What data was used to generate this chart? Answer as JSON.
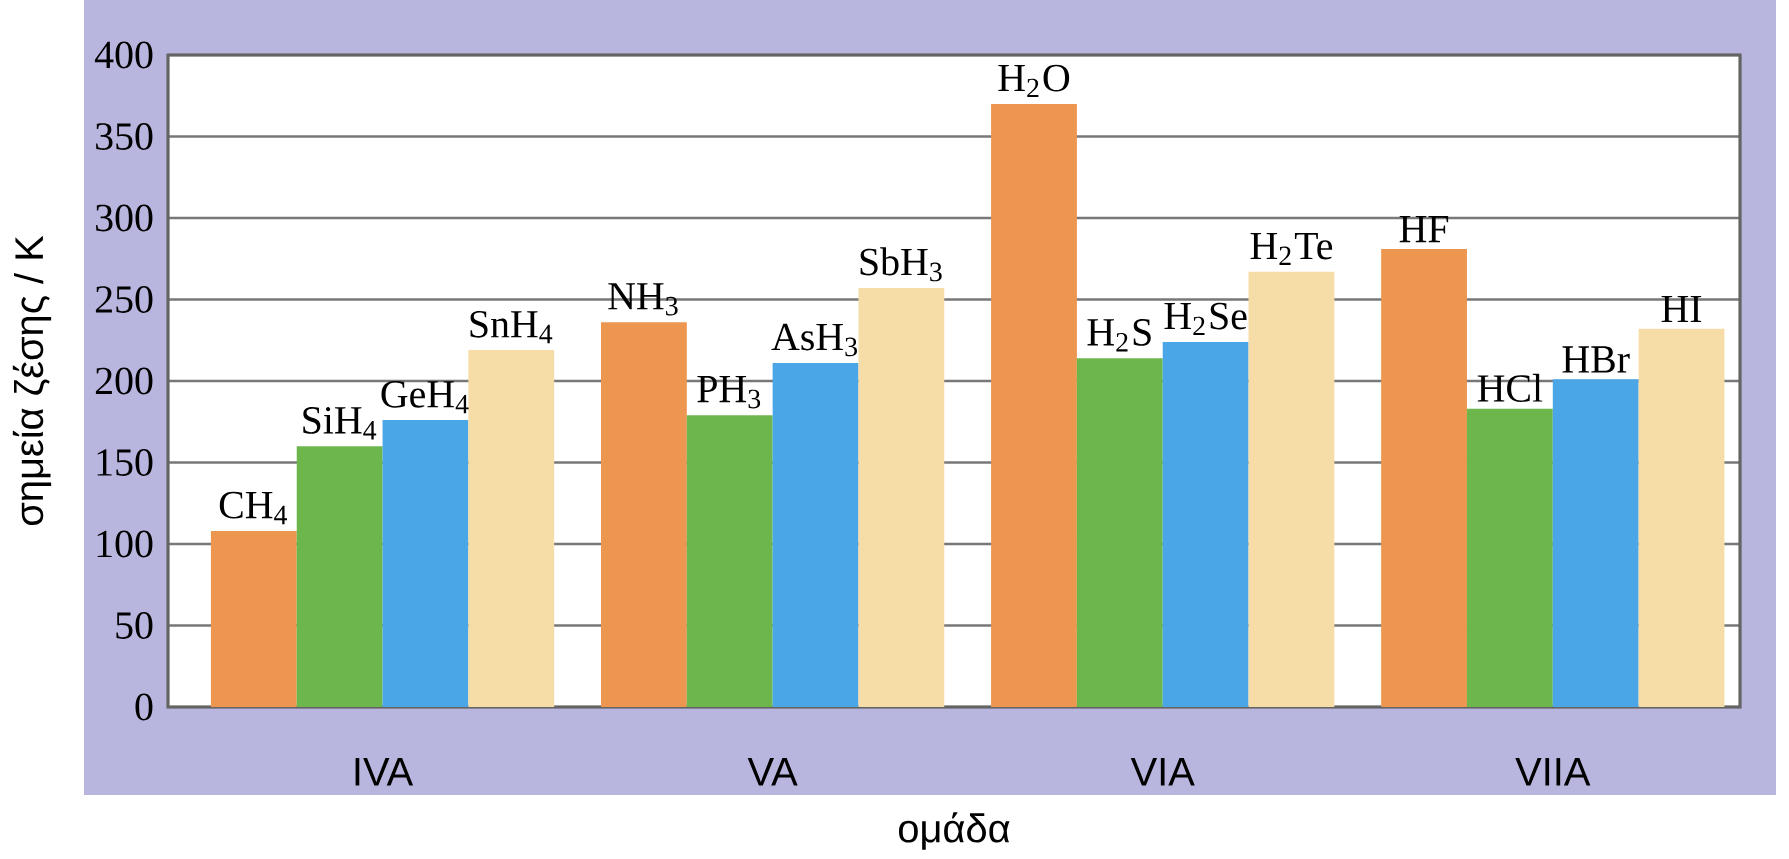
{
  "chart_data": {
    "type": "bar",
    "xlabel": "ομάδα",
    "ylabel": "σημεία ζέσης / K",
    "categories": [
      "IVA",
      "VA",
      "VIA",
      "VIIA"
    ],
    "series": [
      {
        "color": "#ec9650",
        "values": [
          108,
          236,
          370,
          281
        ]
      },
      {
        "color": "#6db64c",
        "values": [
          160,
          179,
          214,
          183
        ]
      },
      {
        "color": "#4aa6e6",
        "values": [
          176,
          211,
          224,
          201
        ]
      },
      {
        "color": "#f6dca6",
        "values": [
          219,
          257,
          267,
          232
        ]
      }
    ],
    "ylim": [
      0,
      400
    ],
    "yticks": [
      0,
      50,
      100,
      150,
      200,
      250,
      300,
      350,
      400
    ],
    "grid": "y",
    "annotations": [
      "CH$_{4}$",
      "SiH$_{4}$",
      "GeH$_{4}$",
      "SnH$_{4}$",
      "NH$_{3}$",
      "PH$_{3}$",
      "AsH$_{3}$",
      "SbH$_{3}$",
      "H$_{2}$O",
      "H$_{2}$S",
      "H$_{2}$Se",
      "H$_{2}$Te",
      "HF",
      "HCl",
      "HBr",
      "HI"
    ]
  }
}
